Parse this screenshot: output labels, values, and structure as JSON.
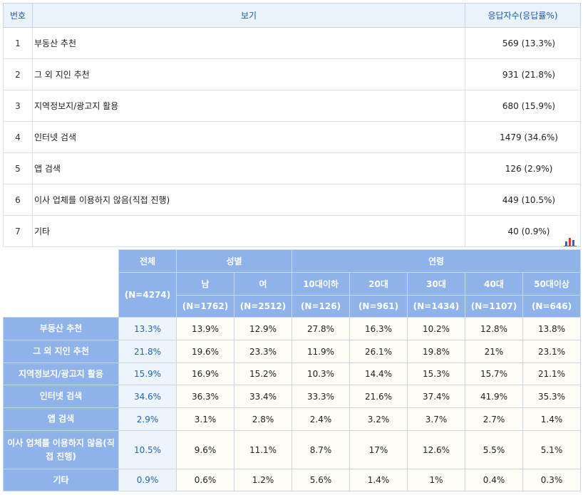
{
  "summary": {
    "headers": {
      "no": "번호",
      "option": "보기",
      "responses": "응답자수(응답률%)"
    },
    "rows": [
      {
        "no": "1",
        "option": "부동산 추천",
        "responses": "569 (13.3%)"
      },
      {
        "no": "2",
        "option": "그 외 지인 추천",
        "responses": "931 (21.8%)"
      },
      {
        "no": "3",
        "option": "지역정보지/광고지 활용",
        "responses": "680 (15.9%)"
      },
      {
        "no": "4",
        "option": "인터넷 검색",
        "responses": "1479 (34.6%)"
      },
      {
        "no": "5",
        "option": "앱 검색",
        "responses": "126 (2.9%)"
      },
      {
        "no": "6",
        "option": "이사 업체를 이용하지 않음(직접 진행)",
        "responses": "449 (10.5%)"
      },
      {
        "no": "7",
        "option": "기타",
        "responses": "40 (0.9%)"
      }
    ]
  },
  "chart_icon": {
    "name": "bar-chart-icon",
    "colors": [
      "#3b5bd6",
      "#d23b3b",
      "#3b5bd6"
    ]
  },
  "cross": {
    "total_label": "전체",
    "total_n": "(N=4274)",
    "gender_label": "성별",
    "age_label": "연령",
    "subgroups": [
      {
        "label": "남",
        "n": "(N=1762)"
      },
      {
        "label": "여",
        "n": "(N=2512)"
      },
      {
        "label": "10대이하",
        "n": "(N=126)"
      },
      {
        "label": "20대",
        "n": "(N=961)"
      },
      {
        "label": "30대",
        "n": "(N=1434)"
      },
      {
        "label": "40대",
        "n": "(N=1107)"
      },
      {
        "label": "50대이상",
        "n": "(N=646)"
      }
    ],
    "rows": [
      {
        "label": "부동산 추천",
        "total": "13.3%",
        "values": [
          "13.9%",
          "12.9%",
          "27.8%",
          "16.3%",
          "10.2%",
          "12.8%",
          "13.8%"
        ]
      },
      {
        "label": "그 외 지인 추천",
        "total": "21.8%",
        "values": [
          "19.6%",
          "23.3%",
          "11.9%",
          "26.1%",
          "19.8%",
          "21%",
          "23.1%"
        ]
      },
      {
        "label": "지역정보지/광고지 활용",
        "total": "15.9%",
        "values": [
          "16.9%",
          "15.2%",
          "10.3%",
          "14.4%",
          "15.3%",
          "15.7%",
          "21.1%"
        ]
      },
      {
        "label": "인터넷 검색",
        "total": "34.6%",
        "values": [
          "36.3%",
          "33.4%",
          "33.3%",
          "21.6%",
          "37.4%",
          "41.9%",
          "35.3%"
        ]
      },
      {
        "label": "앱 검색",
        "total": "2.9%",
        "values": [
          "3.1%",
          "2.8%",
          "2.4%",
          "3.2%",
          "3.7%",
          "2.7%",
          "1.4%"
        ]
      },
      {
        "label": "이사 업체를 이용하지 않음(직접 진행)",
        "total": "10.5%",
        "values": [
          "9.6%",
          "11.1%",
          "8.7%",
          "17%",
          "12.6%",
          "5.5%",
          "5.1%"
        ]
      },
      {
        "label": "기타",
        "total": "0.9%",
        "values": [
          "0.6%",
          "1.2%",
          "5.6%",
          "1.4%",
          "1%",
          "0.4%",
          "0.3%"
        ]
      }
    ]
  }
}
